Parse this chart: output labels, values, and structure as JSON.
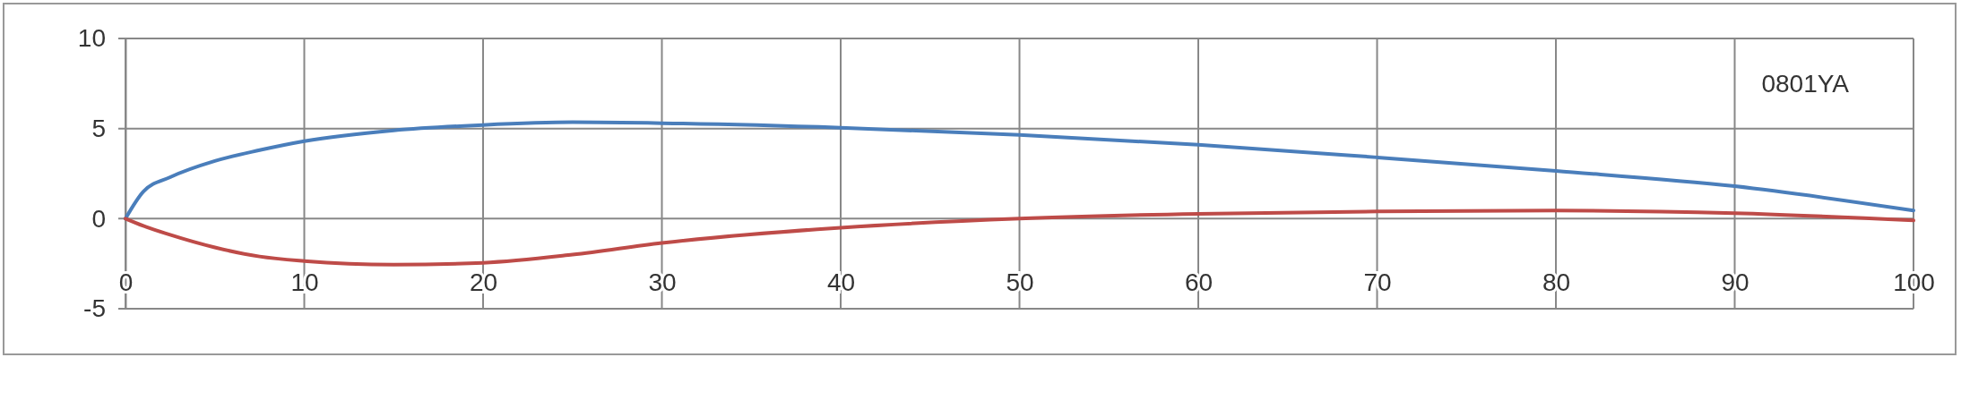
{
  "chart_data": {
    "type": "line",
    "series": [
      {
        "color": "#4a7ebb",
        "x": [
          0,
          1,
          2.5,
          5,
          7.5,
          10,
          15,
          20,
          25,
          30,
          40,
          50,
          60,
          70,
          80,
          90,
          100
        ],
        "values": [
          0,
          1.5,
          2.3,
          3.2,
          3.8,
          4.3,
          4.9,
          5.2,
          5.35,
          5.3,
          5.05,
          4.65,
          4.1,
          3.4,
          2.65,
          1.8,
          0.45
        ]
      },
      {
        "color": "#be4b48",
        "x": [
          0,
          1,
          2.5,
          5,
          7.5,
          10,
          15,
          20,
          25,
          30,
          40,
          50,
          60,
          70,
          80,
          90,
          100
        ],
        "values": [
          0,
          -0.4,
          -0.9,
          -1.6,
          -2.1,
          -2.35,
          -2.55,
          -2.45,
          -2.0,
          -1.35,
          -0.5,
          0,
          0.27,
          0.4,
          0.45,
          0.3,
          -0.1
        ]
      }
    ],
    "xlim": [
      0,
      100
    ],
    "xticks": [
      0,
      10,
      20,
      30,
      40,
      50,
      60,
      70,
      80,
      90,
      100
    ],
    "ylim": [
      -5,
      10
    ],
    "yticks": [
      -5,
      0,
      5,
      10
    ],
    "grid": true,
    "marker": "none",
    "line_style": "solid",
    "annotations": [
      "0801YA"
    ]
  }
}
